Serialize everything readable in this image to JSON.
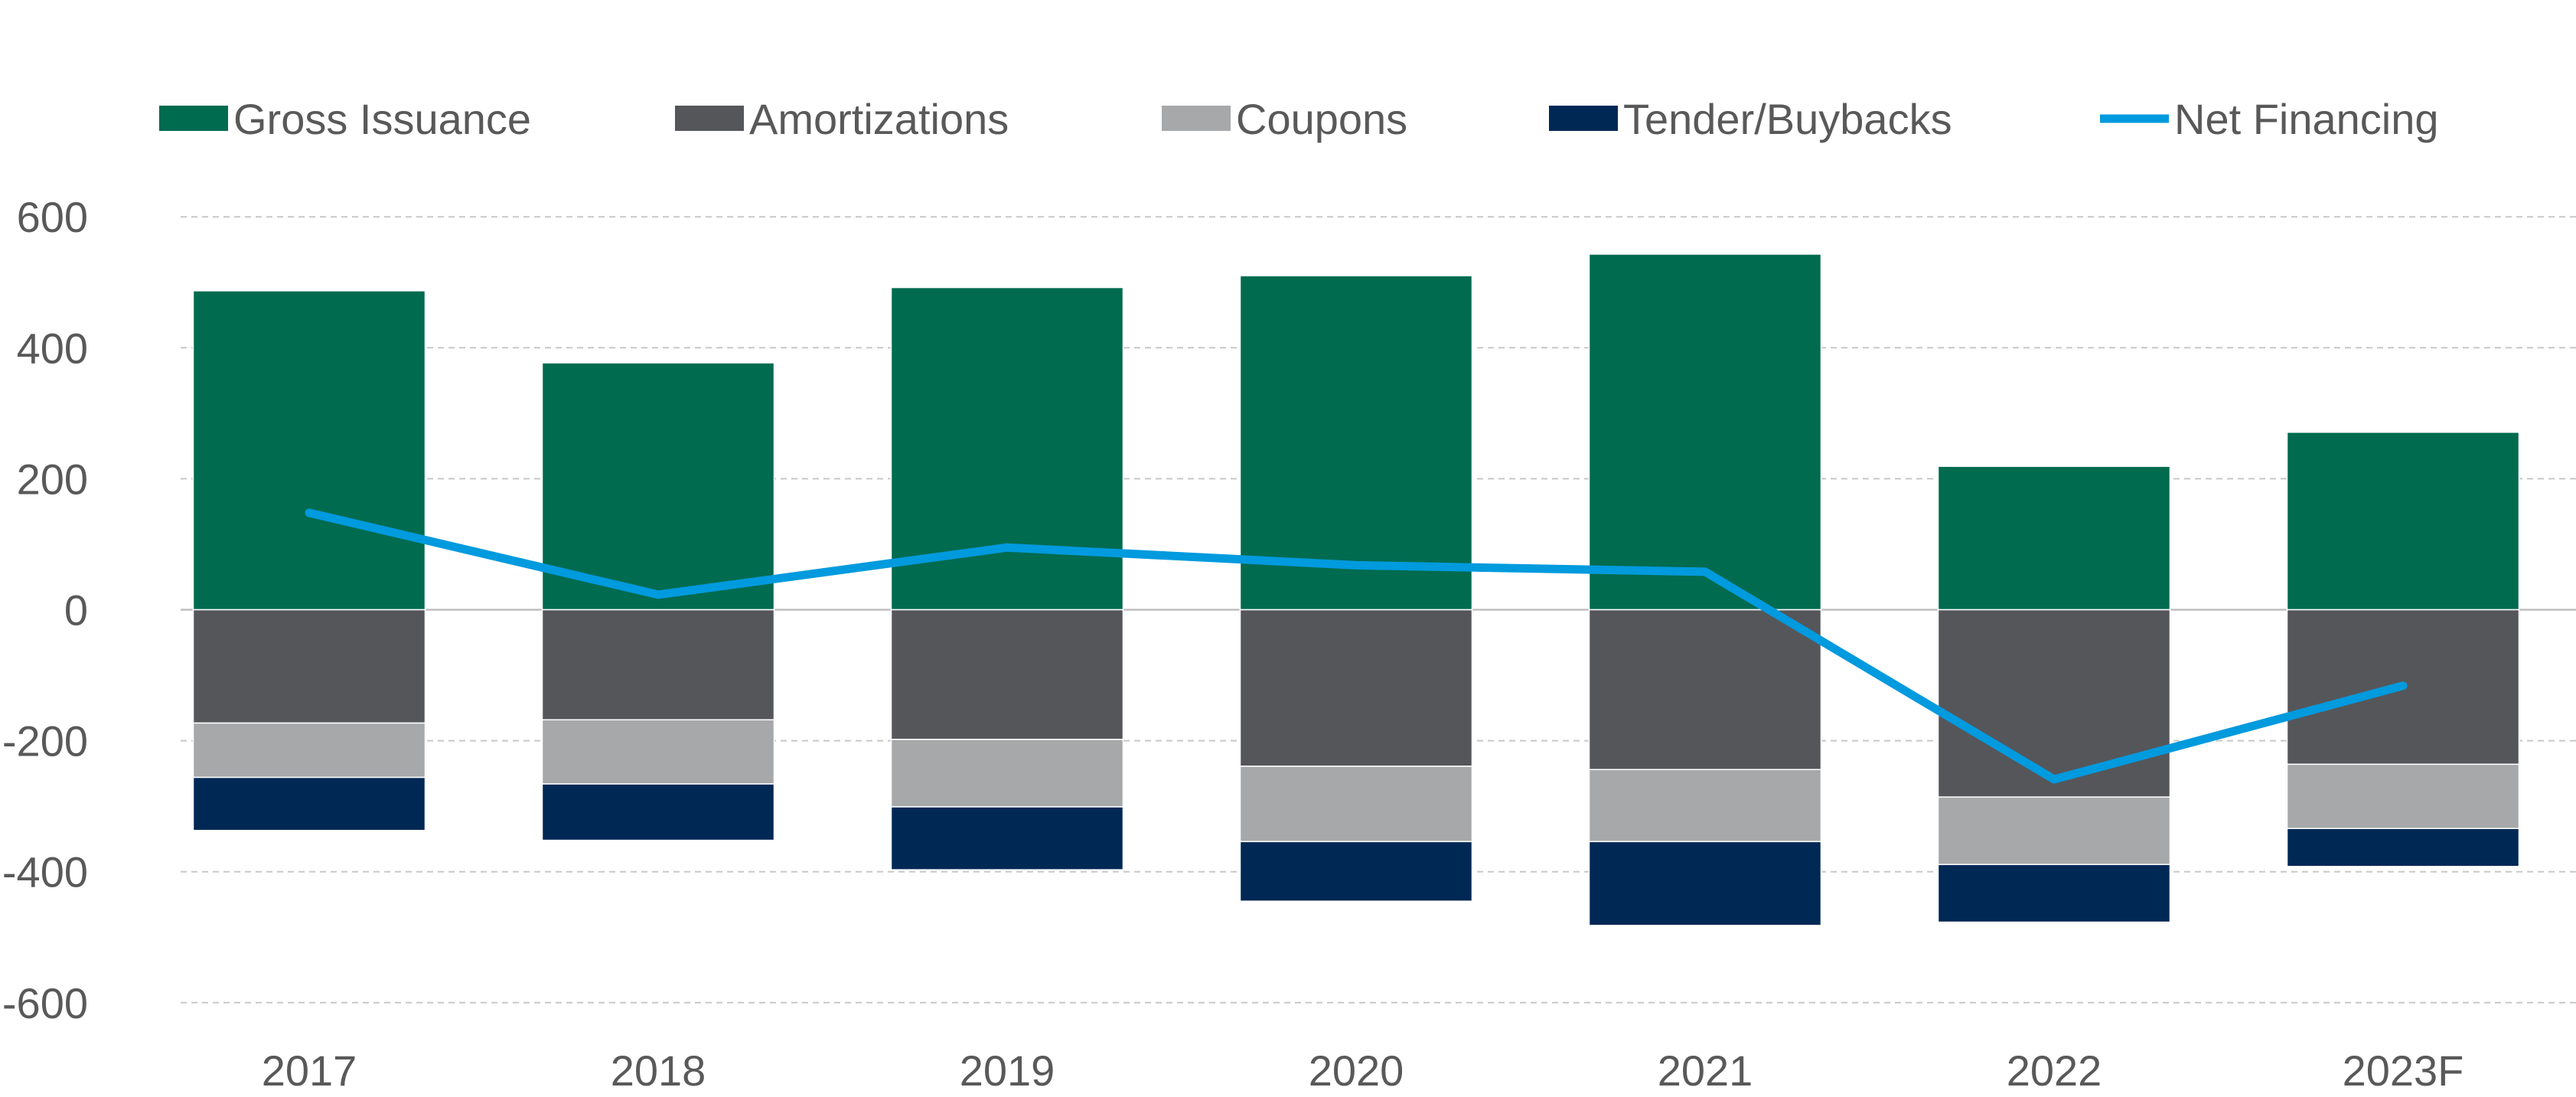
{
  "chart_data": {
    "type": "bar",
    "stacked": true,
    "categories": [
      "2017",
      "2018",
      "2019",
      "2020",
      "2021",
      "2022",
      "2023F"
    ],
    "series": [
      {
        "name": "Gross Issuance",
        "kind": "bar",
        "color": "#006B4F",
        "values": [
          487,
          377,
          492,
          510,
          543,
          219,
          271
        ]
      },
      {
        "name": "Amortizations",
        "kind": "bar",
        "color": "#55565A",
        "values": [
          -173,
          -168,
          -198,
          -239,
          -244,
          -286,
          -236
        ]
      },
      {
        "name": "Coupons",
        "kind": "bar",
        "color": "#A7A8AA",
        "values": [
          -83,
          -98,
          -103,
          -115,
          -110,
          -103,
          -98
        ]
      },
      {
        "name": "Tender/Buybacks",
        "kind": "bar",
        "color": "#002855",
        "values": [
          -81,
          -86,
          -96,
          -91,
          -128,
          -88,
          -58
        ]
      },
      {
        "name": "Net Financing",
        "kind": "line",
        "color": "#009ADE",
        "values": [
          148,
          23,
          95,
          68,
          58,
          -259,
          -116
        ]
      }
    ],
    "ylim": [
      -600,
      600
    ],
    "yticks": [
      600,
      400,
      200,
      0,
      -200,
      -400,
      -600
    ],
    "grid": true,
    "legend": "top",
    "title": "",
    "xlabel": "",
    "ylabel": ""
  }
}
